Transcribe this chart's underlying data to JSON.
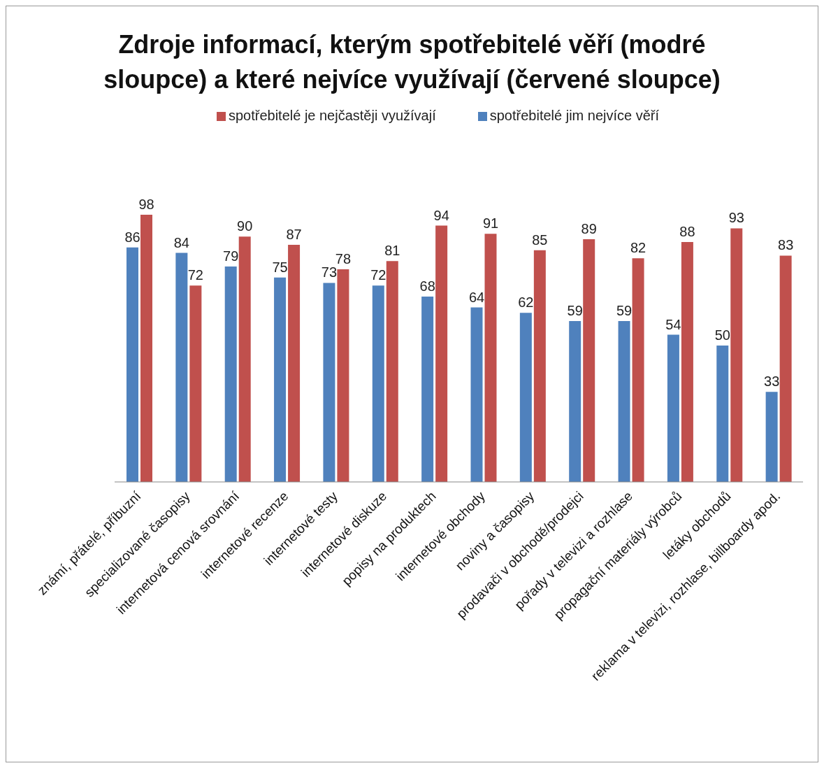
{
  "chart_data": {
    "type": "bar",
    "title": "Zdroje informací, kterým spotřebitelé věří (modré sloupce) a které nejvíce využívají (červené sloupce)",
    "categories": [
      "známí, přátelé, příbuzní",
      "specializované časopisy",
      "internetová cenová srovnání",
      "internetové recenze",
      "internetové testy",
      "internetové diskuze",
      "popisy na produktech",
      "internetové obchody",
      "noviny a časopisy",
      "prodavači v obchodě/prodejci",
      "pořady v televizi a rozhlase",
      "propagační materiály výrobců",
      "letáky obchodů",
      "reklama v televizi, rozhlase, billboardy apod."
    ],
    "series": [
      {
        "name": "spotřebitelé jim nejvíce věří",
        "color": "#4f81bd",
        "values": [
          86,
          84,
          79,
          75,
          73,
          72,
          68,
          64,
          62,
          59,
          59,
          54,
          50,
          33
        ]
      },
      {
        "name": "spotřebitelé je nejčastěji využívají",
        "color": "#c0504d",
        "values": [
          98,
          72,
          90,
          87,
          78,
          81,
          94,
          91,
          85,
          89,
          82,
          88,
          93,
          83
        ]
      }
    ],
    "data_labels": true,
    "legend": "top",
    "grid": false
  }
}
